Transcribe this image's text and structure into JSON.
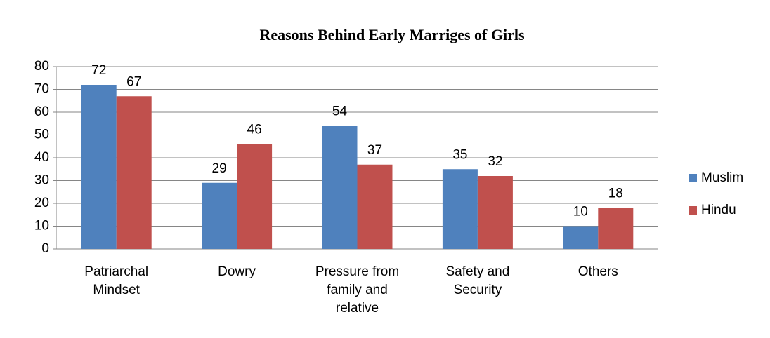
{
  "chart_data": {
    "type": "bar",
    "title": "Reasons Behind Early Marriges of Girls",
    "categories": [
      "Patriarchal Mindset",
      "Dowry",
      "Pressure from family and relative",
      "Safety and Security",
      "Others"
    ],
    "series": [
      {
        "name": "Muslim",
        "color": "#4f81bd",
        "values": [
          72,
          29,
          54,
          35,
          10
        ]
      },
      {
        "name": "Hindu",
        "color": "#c0504d",
        "values": [
          67,
          46,
          37,
          32,
          18
        ]
      }
    ],
    "ylim": [
      0,
      80
    ],
    "yticks": [
      0,
      10,
      20,
      30,
      40,
      50,
      60,
      70,
      80
    ],
    "grid": true,
    "legend": "right"
  }
}
